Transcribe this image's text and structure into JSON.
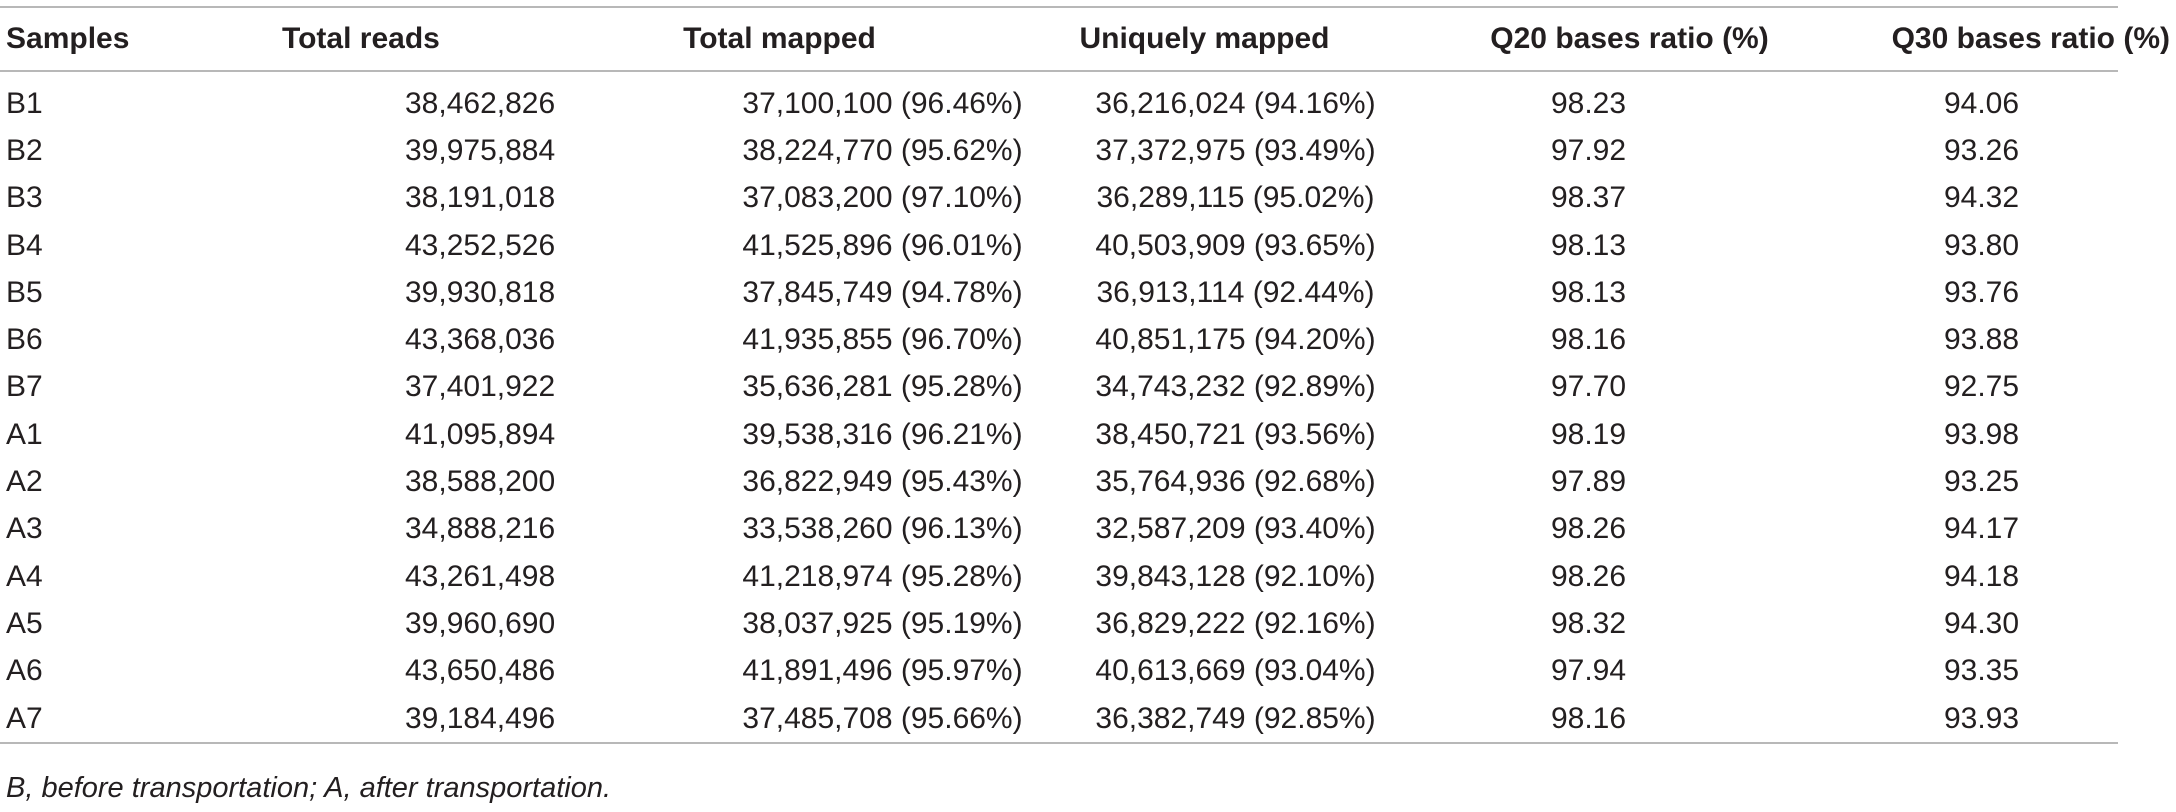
{
  "table": {
    "headers": [
      "Samples",
      "Total reads",
      "Total mapped",
      "Uniquely mapped",
      "Q20 bases ratio (%)",
      "Q30 bases ratio (%)"
    ],
    "rows": [
      [
        "B1",
        "38,462,826",
        "37,100,100 (96.46%)",
        "36,216,024 (94.16%)",
        "98.23",
        "94.06"
      ],
      [
        "B2",
        "39,975,884",
        "38,224,770 (95.62%)",
        "37,372,975 (93.49%)",
        "97.92",
        "93.26"
      ],
      [
        "B3",
        "38,191,018",
        "37,083,200 (97.10%)",
        "36,289,115 (95.02%)",
        "98.37",
        "94.32"
      ],
      [
        "B4",
        "43,252,526",
        "41,525,896 (96.01%)",
        "40,503,909 (93.65%)",
        "98.13",
        "93.80"
      ],
      [
        "B5",
        "39,930,818",
        "37,845,749 (94.78%)",
        "36,913,114 (92.44%)",
        "98.13",
        "93.76"
      ],
      [
        "B6",
        "43,368,036",
        "41,935,855 (96.70%)",
        "40,851,175 (94.20%)",
        "98.16",
        "93.88"
      ],
      [
        "B7",
        "37,401,922",
        "35,636,281 (95.28%)",
        "34,743,232 (92.89%)",
        "97.70",
        "92.75"
      ],
      [
        "A1",
        "41,095,894",
        "39,538,316 (96.21%)",
        "38,450,721 (93.56%)",
        "98.19",
        "93.98"
      ],
      [
        "A2",
        "38,588,200",
        "36,822,949 (95.43%)",
        "35,764,936 (92.68%)",
        "97.89",
        "93.25"
      ],
      [
        "A3",
        "34,888,216",
        "33,538,260 (96.13%)",
        "32,587,209 (93.40%)",
        "98.26",
        "94.17"
      ],
      [
        "A4",
        "43,261,498",
        "41,218,974 (95.28%)",
        "39,843,128 (92.10%)",
        "98.26",
        "94.18"
      ],
      [
        "A5",
        "39,960,690",
        "38,037,925 (95.19%)",
        "36,829,222 (92.16%)",
        "98.32",
        "94.30"
      ],
      [
        "A6",
        "43,650,486",
        "41,891,496 (95.97%)",
        "40,613,669 (93.04%)",
        "97.94",
        "93.35"
      ],
      [
        "A7",
        "39,184,496",
        "37,485,708 (95.66%)",
        "36,382,749 (92.85%)",
        "98.16",
        "93.93"
      ]
    ]
  },
  "footnote": "B, before transportation; A, after transportation.",
  "colors": {
    "text": "#231f20",
    "rule": "#b8b8b8"
  }
}
